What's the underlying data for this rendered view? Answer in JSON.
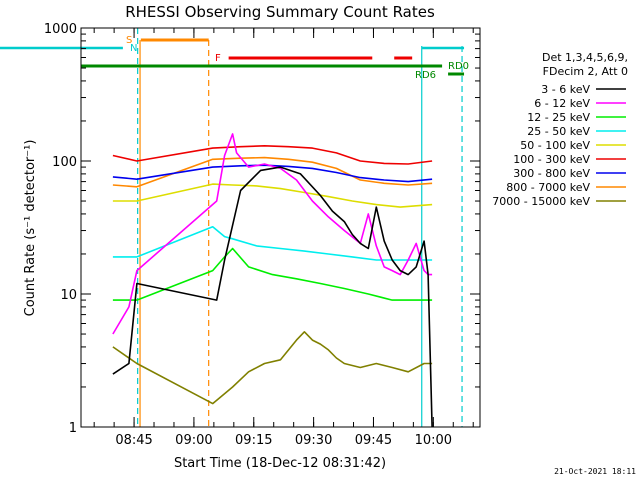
{
  "chart_data": {
    "type": "line",
    "title": "RHESSI Observing Summary Count Rates",
    "xlabel": "Start Time (18-Dec-12 08:31:42)",
    "ylabel": "Count Rate (s⁻¹ detector⁻¹)",
    "yscale": "log",
    "ylim": [
      1,
      1000
    ],
    "yticks": [
      1,
      10,
      100,
      1000
    ],
    "yticklabels": [
      "1",
      "10",
      "100",
      "1000"
    ],
    "xlim_minutes": [
      0,
      100
    ],
    "xticks_minutes": [
      13.3,
      28.3,
      43.3,
      58.3,
      73.3,
      88.3
    ],
    "xticklabels": [
      "08:45",
      "09:00",
      "09:15",
      "09:30",
      "09:45",
      "10:00"
    ],
    "legend_header": [
      "Det 1,3,4,5,6,9,",
      "FDecim 2, Att 0"
    ],
    "legend_placement": "right",
    "series": [
      {
        "name": "3 - 6 keV",
        "color": "#000000",
        "x": [
          8,
          12,
          14,
          34,
          36,
          40,
          45,
          50,
          55,
          60,
          63,
          66,
          68,
          70,
          72,
          74,
          76,
          78,
          80,
          82,
          84,
          86,
          87,
          88
        ],
        "y": [
          2.5,
          3,
          12,
          9,
          18,
          60,
          85,
          90,
          80,
          55,
          42,
          35,
          28,
          24,
          22,
          45,
          25,
          18,
          15,
          14,
          16,
          25,
          14,
          1
        ]
      },
      {
        "name": "6 - 12 keV",
        "color": "#ff00ff",
        "x": [
          8,
          12,
          14,
          34,
          36,
          38,
          39,
          42,
          46,
          50,
          54,
          58,
          62,
          66,
          70,
          72,
          74,
          76,
          78,
          80,
          82,
          84,
          86,
          87,
          88
        ],
        "y": [
          5,
          8,
          15,
          50,
          110,
          160,
          115,
          90,
          95,
          88,
          72,
          50,
          38,
          30,
          24,
          40,
          23,
          16,
          15,
          14,
          18,
          24,
          15,
          14,
          14
        ]
      },
      {
        "name": "12 - 25 keV",
        "color": "#00ee00",
        "x": [
          8,
          14,
          33,
          36,
          38,
          42,
          48,
          54,
          60,
          66,
          72,
          78,
          84,
          88
        ],
        "y": [
          9,
          9,
          15,
          19,
          22,
          16,
          14,
          13,
          12,
          11,
          10,
          9,
          9,
          9
        ]
      },
      {
        "name": "25 - 50 keV",
        "color": "#00eeee",
        "x": [
          8,
          14,
          33,
          36,
          38,
          44,
          50,
          56,
          62,
          68,
          74,
          80,
          88
        ],
        "y": [
          19,
          19,
          32,
          27,
          26,
          23,
          22,
          21,
          20,
          19,
          18,
          18,
          18
        ]
      },
      {
        "name": "50 - 100 keV",
        "color": "#dddd00",
        "x": [
          8,
          14,
          33,
          38,
          44,
          50,
          56,
          62,
          68,
          74,
          80,
          88
        ],
        "y": [
          50,
          50,
          67,
          66,
          65,
          62,
          58,
          54,
          50,
          47,
          45,
          47
        ]
      },
      {
        "name": "100 - 300 keV",
        "color": "#ee0000",
        "x": [
          8,
          14,
          33,
          40,
          46,
          52,
          58,
          64,
          70,
          76,
          82,
          88
        ],
        "y": [
          110,
          100,
          125,
          128,
          130,
          128,
          125,
          115,
          100,
          96,
          95,
          100
        ]
      },
      {
        "name": "300 - 800 keV",
        "color": "#0000ee",
        "x": [
          8,
          14,
          33,
          40,
          46,
          52,
          58,
          64,
          70,
          76,
          82,
          88
        ],
        "y": [
          76,
          73,
          90,
          92,
          93,
          91,
          88,
          82,
          75,
          72,
          70,
          73
        ]
      },
      {
        "name": "800 - 7000 keV",
        "color": "#ff8800",
        "x": [
          8,
          14,
          33,
          40,
          46,
          52,
          58,
          64,
          70,
          76,
          82,
          88
        ],
        "y": [
          66,
          64,
          103,
          105,
          106,
          103,
          98,
          88,
          72,
          68,
          66,
          68
        ]
      },
      {
        "name": "7000 - 15000 keV",
        "color": "#808000",
        "x": [
          8,
          14,
          33,
          38,
          42,
          46,
          50,
          54,
          56,
          58,
          60,
          62,
          64,
          66,
          70,
          74,
          78,
          82,
          86,
          88
        ],
        "y": [
          4,
          3,
          1.5,
          2,
          2.6,
          3,
          3.2,
          4.5,
          5.2,
          4.5,
          4.2,
          3.8,
          3.3,
          3,
          2.8,
          3,
          2.8,
          2.6,
          3,
          3
        ]
      }
    ],
    "annotations": [
      {
        "label": "S",
        "color": "#ff8800"
      },
      {
        "label": "N",
        "color": "#00cccc"
      },
      {
        "label": "F",
        "color": "#ee0000"
      },
      {
        "label": "RD0",
        "color": "#008800"
      },
      {
        "label": "RD6",
        "color": "#008800"
      }
    ],
    "timestamp": "21-Oct-2021 18:11"
  }
}
